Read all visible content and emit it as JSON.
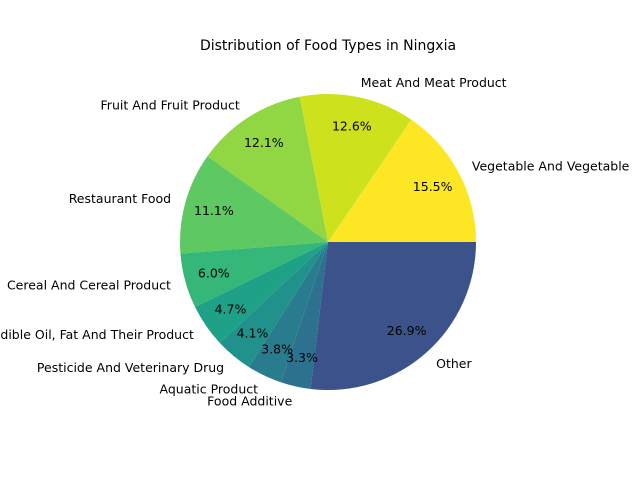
{
  "chart_data": {
    "type": "pie",
    "title": "Distribution of Food Types in Ningxia",
    "start_angle_deg": 0,
    "direction": "counterclockwise",
    "slices": [
      {
        "label": "Vegetable And Vegetable",
        "value": 15.5,
        "pct_label": "15.5%",
        "color": "#fde725"
      },
      {
        "label": "Meat And Meat Product",
        "value": 12.6,
        "pct_label": "12.6%",
        "color": "#cde11d"
      },
      {
        "label": "Fruit And Fruit Product",
        "value": 12.1,
        "pct_label": "12.1%",
        "color": "#90d743"
      },
      {
        "label": "Restaurant Food",
        "value": 11.1,
        "pct_label": "11.1%",
        "color": "#5ec962"
      },
      {
        "label": "Cereal And Cereal Product",
        "value": 6.0,
        "pct_label": "6.0%",
        "color": "#35b779"
      },
      {
        "label": "Edible Oil, Fat And Their Product",
        "value": 4.7,
        "pct_label": "4.7%",
        "color": "#1fa187"
      },
      {
        "label": "Pesticide And Veterinary Drug",
        "value": 4.1,
        "pct_label": "4.1%",
        "color": "#21918c"
      },
      {
        "label": "Aquatic Product",
        "value": 3.8,
        "pct_label": "3.8%",
        "color": "#287c8e"
      },
      {
        "label": "Food Additive",
        "value": 3.3,
        "pct_label": "3.3%",
        "color": "#2c728e"
      },
      {
        "label": "Other",
        "value": 26.9,
        "pct_label": "26.9%",
        "color": "#3b528b"
      }
    ]
  }
}
